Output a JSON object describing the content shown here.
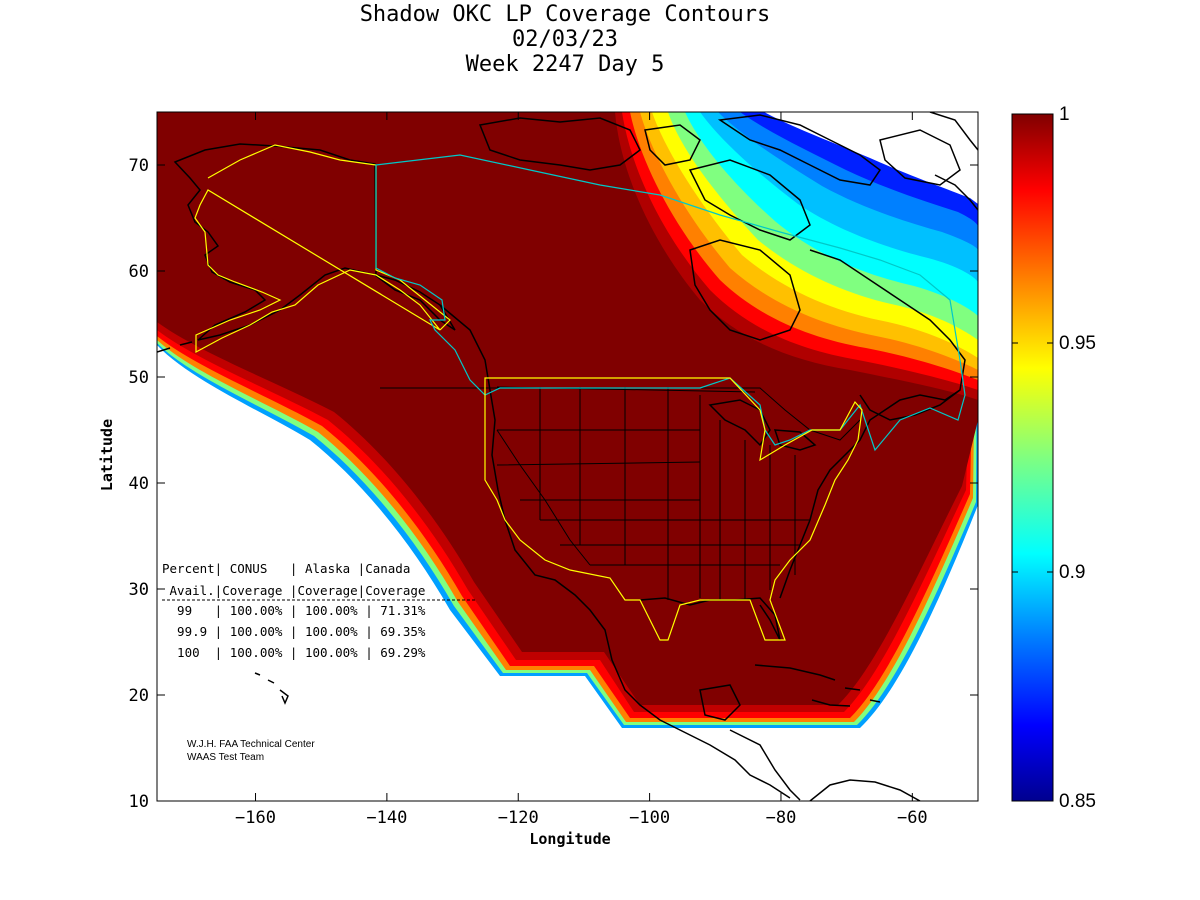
{
  "title": {
    "line1": "Shadow OKC LP Coverage Contours",
    "line2": "02/03/23",
    "line3": "Week 2247 Day 5"
  },
  "axes": {
    "xlabel": "Longitude",
    "ylabel": "Latitude",
    "xlim": [
      -175,
      -50
    ],
    "ylim": [
      10,
      75
    ],
    "xticks": [
      -160,
      -140,
      -120,
      -100,
      -80,
      -60
    ],
    "yticks": [
      10,
      20,
      30,
      40,
      50,
      60,
      70
    ]
  },
  "colorbar": {
    "range": [
      0.85,
      1
    ],
    "ticks": [
      {
        "value": 1,
        "label": "1"
      },
      {
        "value": 0.95,
        "label": "0.95"
      },
      {
        "value": 0.9,
        "label": "0.9"
      },
      {
        "value": 0.85,
        "label": "0.85"
      }
    ],
    "colormap": [
      "#00008f",
      "#0000ff",
      "#0080ff",
      "#00ffff",
      "#80ff80",
      "#ffff00",
      "#ff8000",
      "#ff0000",
      "#800000"
    ]
  },
  "stats_table": {
    "lines": [
      "Percent| CONUS   | Alaska |Canada",
      " Avail.|Coverage |Coverage|Coverage",
      "  99   | 100.00% | 100.00% | 71.31%",
      "  99.9 | 100.00% | 100.00% | 69.35%",
      "  100  | 100.00% | 100.00% | 69.29%"
    ]
  },
  "credits": {
    "line1": "W.J.H. FAA Technical Center",
    "line2": "WAAS Test Team"
  },
  "colors": {
    "full_coverage": "#800000",
    "border_conus": "#ffff00",
    "border_canada": "#00c8c8",
    "coastline": "#000000"
  }
}
